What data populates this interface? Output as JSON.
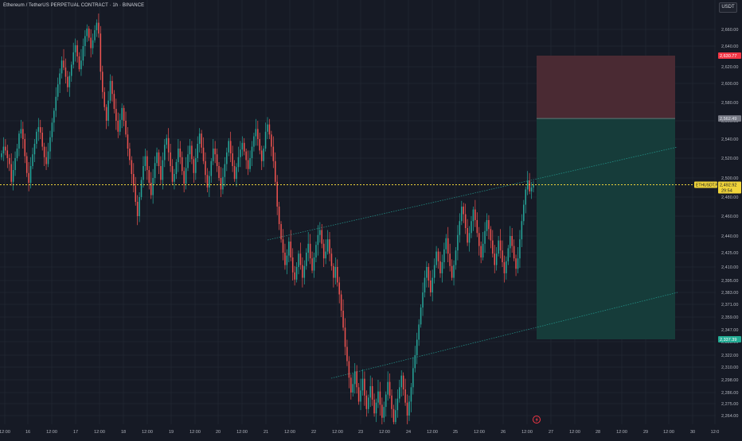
{
  "header": {
    "title": "Ethereum / TetherUS PERPETUAL CONTRACT · 1h · BINANCE",
    "unit": "USDT"
  },
  "colors": {
    "background": "#161a25",
    "grid": "#1f2430",
    "up": "#26a69a",
    "down": "#ef5350",
    "price_line": "#f0d43a",
    "channel": "#26a69a",
    "stop_zone": "#4a2a33",
    "target_zone": "#163c3a",
    "axis_text": "#b2b5be"
  },
  "chart_data": {
    "type": "candlestick",
    "symbol": "ETHUSDT.P",
    "interval": "1h",
    "exchange": "BINANCE",
    "y_axis_ticks": [
      2660,
      2640,
      2620,
      2600,
      2580,
      2560,
      2540,
      2520,
      2500,
      2480,
      2460,
      2440,
      2425,
      2410,
      2395,
      2383,
      2371,
      2359,
      2347,
      2335,
      2322,
      2310,
      2298,
      2286,
      2275,
      2264
    ],
    "y_axis_tick_labels": [
      "2,660.00",
      "2,640.00",
      "2,620.00",
      "2,600.00",
      "2,580.00",
      "2,560.00",
      "2,540.00",
      "2,520.00",
      "2,500.00",
      "2,480.00",
      "2,460.00",
      "2,440.00",
      "2,425.00",
      "2,410.00",
      "2,395.00",
      "2,383.00",
      "2,371.00",
      "2,359.00",
      "2,347.00",
      "2,335.00",
      "2,322.00",
      "2,310.00",
      "2,298.00",
      "2,286.00",
      "2,275.00",
      "2,264.00"
    ],
    "x_axis_labels": [
      "12:00",
      "16",
      "12:00",
      "17",
      "12:00",
      "18",
      "12:00",
      "19",
      "12:00",
      "20",
      "12:00",
      "21",
      "12:00",
      "22",
      "12:00",
      "23",
      "12:00",
      "24",
      "12:00",
      "25",
      "12:00",
      "26",
      "12:00",
      "27",
      "12:00",
      "28",
      "12:00",
      "29",
      "12:00",
      "30",
      "12:0"
    ],
    "current_price": 2492.92,
    "current_price_label": "2,492.92",
    "symbol_label": "ETHUSDT.P",
    "countdown": "29:54",
    "stop_loss": 2630.77,
    "stop_loss_label": "2,630.77",
    "entry": 2562.49,
    "entry_label": "2,562.49",
    "take_profit": 2337.39,
    "take_profit_label": "2,337.39",
    "grid": true,
    "candles_close": [
      2525,
      2532,
      2528,
      2520,
      2514,
      2496,
      2508,
      2520,
      2530,
      2546,
      2551,
      2540,
      2522,
      2505,
      2495,
      2512,
      2524,
      2535,
      2548,
      2553,
      2547,
      2532,
      2521,
      2514,
      2527,
      2542,
      2558,
      2571,
      2586,
      2599,
      2612,
      2626,
      2619,
      2608,
      2596,
      2609,
      2622,
      2634,
      2641,
      2630,
      2617,
      2626,
      2640,
      2652,
      2661,
      2650,
      2638,
      2647,
      2659,
      2668,
      2655,
      2614,
      2591,
      2575,
      2560,
      2582,
      2603,
      2589,
      2573,
      2560,
      2548,
      2561,
      2574,
      2560,
      2545,
      2530,
      2518,
      2504,
      2492,
      2475,
      2460,
      2480,
      2498,
      2512,
      2522,
      2508,
      2495,
      2482,
      2500,
      2515,
      2526,
      2512,
      2498,
      2518,
      2534,
      2541,
      2526,
      2512,
      2496,
      2504,
      2516,
      2530,
      2521,
      2507,
      2494,
      2510,
      2524,
      2533,
      2519,
      2505,
      2520,
      2535,
      2546,
      2531,
      2517,
      2503,
      2490,
      2502,
      2517,
      2530,
      2524,
      2512,
      2500,
      2488,
      2501,
      2514,
      2526,
      2538,
      2525,
      2512,
      2499,
      2511,
      2521,
      2529,
      2536,
      2527,
      2518,
      2509,
      2520,
      2532,
      2543,
      2551,
      2540,
      2528,
      2517,
      2530,
      2548,
      2556,
      2545,
      2532,
      2517,
      2496,
      2470,
      2452,
      2437,
      2425,
      2412,
      2422,
      2435,
      2420,
      2404,
      2396,
      2410,
      2424,
      2412,
      2398,
      2411,
      2425,
      2433,
      2419,
      2406,
      2420,
      2432,
      2441,
      2446,
      2433,
      2419,
      2426,
      2437,
      2424,
      2411,
      2398,
      2410,
      2393,
      2381,
      2365,
      2349,
      2330,
      2316,
      2300,
      2286,
      2294,
      2306,
      2291,
      2277,
      2288,
      2299,
      2283,
      2270,
      2281,
      2292,
      2279,
      2266,
      2276,
      2287,
      2274,
      2262,
      2272,
      2284,
      2296,
      2283,
      2270,
      2258,
      2269,
      2280,
      2291,
      2302,
      2289,
      2276,
      2264,
      2277,
      2291,
      2309,
      2322,
      2337,
      2352,
      2368,
      2383,
      2398,
      2410,
      2395,
      2383,
      2398,
      2412,
      2426,
      2416,
      2403,
      2415,
      2428,
      2438,
      2424,
      2411,
      2398,
      2412,
      2427,
      2441,
      2455,
      2470,
      2462,
      2448,
      2434,
      2443,
      2455,
      2467,
      2456,
      2443,
      2431,
      2420,
      2433,
      2445,
      2456,
      2447,
      2436,
      2424,
      2412,
      2424,
      2436,
      2427,
      2415,
      2403,
      2416,
      2429,
      2440,
      2431,
      2419,
      2408,
      2419,
      2437,
      2455,
      2472,
      2488,
      2497,
      2486,
      2490,
      2493
    ]
  }
}
